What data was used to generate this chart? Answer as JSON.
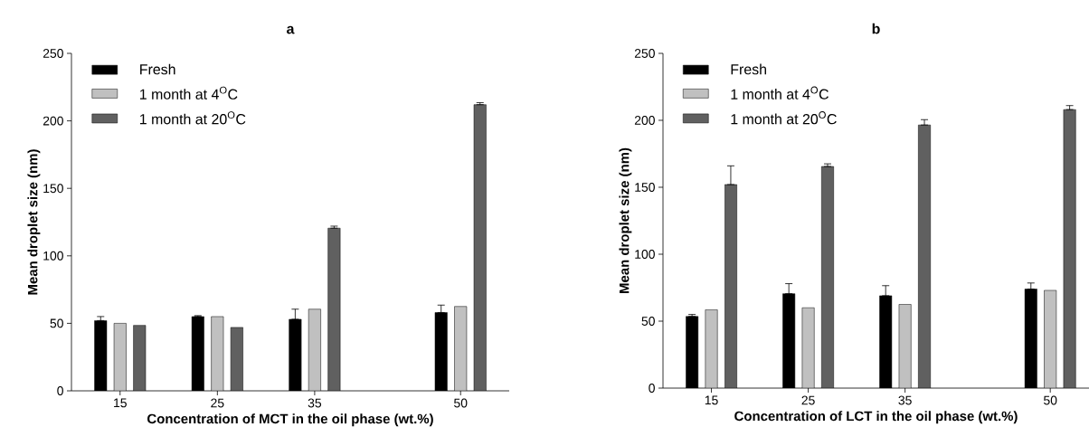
{
  "chart_data": [
    {
      "type": "bar",
      "title": "a",
      "xlabel": "Concentration of MCT in the oil phase (wt.%)",
      "ylabel": "Mean droplet size (nm)",
      "x": [
        15,
        25,
        35,
        50
      ],
      "xlim": [
        10,
        55
      ],
      "xticks": [
        15,
        25,
        35,
        50
      ],
      "ylim": [
        0,
        250
      ],
      "yticks": [
        0,
        50,
        100,
        150,
        200,
        250
      ],
      "legend": "top left",
      "series": [
        {
          "name": "Fresh",
          "color": "#000000",
          "values": [
            52,
            55,
            53,
            58
          ],
          "errors": [
            [
              52,
              55
            ],
            [
              55,
              55.7
            ],
            [
              53,
              60.5
            ],
            [
              58,
              63.5
            ]
          ]
        },
        {
          "name": "1 month at 4$^{O}$C",
          "color": "#c0c0c0",
          "values": [
            50,
            55,
            60.5,
            62.5
          ]
        },
        {
          "name": "1 month at 20$^{O}$C",
          "color": "#606060",
          "values": [
            48.5,
            47,
            120.5,
            212
          ],
          "errors": [
            null,
            null,
            [
              120.5,
              122
            ],
            [
              212,
              213.5
            ]
          ]
        }
      ]
    },
    {
      "type": "bar",
      "title": "b",
      "xlabel": "Concentration of LCT in the oil phase (wt.%)",
      "ylabel": "Mean droplet size (nm)",
      "x": [
        15,
        25,
        35,
        50
      ],
      "xlim": [
        10,
        54
      ],
      "xticks": [
        15,
        25,
        35,
        50
      ],
      "ylim": [
        0,
        250
      ],
      "yticks": [
        0,
        50,
        100,
        150,
        200,
        250
      ],
      "legend": "top left",
      "series": [
        {
          "name": "Fresh",
          "color": "#000000",
          "values": [
            53.5,
            70.5,
            69,
            74
          ],
          "errors": [
            [
              53.5,
              55
            ],
            [
              70.5,
              78
            ],
            [
              69,
              76.5
            ],
            [
              74,
              78.5
            ]
          ]
        },
        {
          "name": "1 month at 4$^{O}$C",
          "color": "#c0c0c0",
          "values": [
            58.5,
            60,
            62.5,
            73
          ]
        },
        {
          "name": "1 month at 20$^{O}$C",
          "color": "#606060",
          "values": [
            152,
            165.5,
            196.5,
            208
          ],
          "errors": [
            [
              152,
              166
            ],
            [
              165.5,
              167.5
            ],
            [
              196.5,
              200.5
            ],
            [
              208,
              211
            ]
          ]
        }
      ]
    }
  ]
}
